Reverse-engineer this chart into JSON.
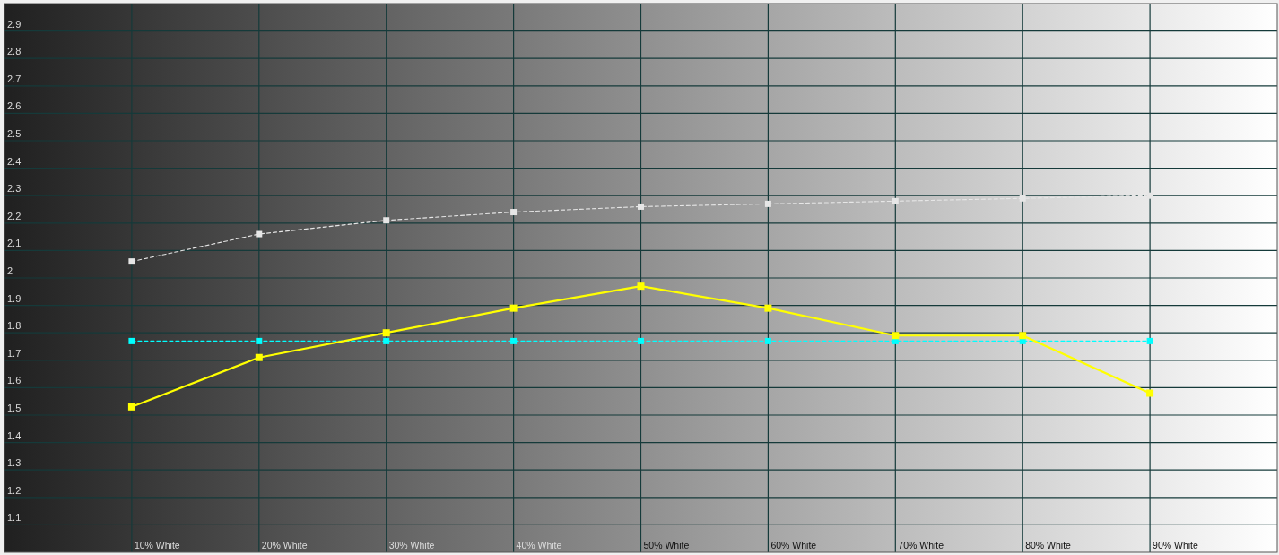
{
  "chart_data": {
    "type": "line",
    "categories": [
      "10% White",
      "20% White",
      "30% White",
      "40% White",
      "50% White",
      "60% White",
      "70% White",
      "80% White",
      "90% White"
    ],
    "series": [
      {
        "color": "#e6e6e6",
        "line_style": "dashed",
        "values": [
          2.06,
          2.16,
          2.21,
          2.24,
          2.26,
          2.27,
          2.28,
          2.29,
          2.3
        ]
      },
      {
        "color": "#00ffff",
        "line_style": "dashed",
        "values": [
          1.77,
          1.77,
          1.77,
          1.77,
          1.77,
          1.77,
          1.77,
          1.77,
          1.77
        ]
      },
      {
        "color": "#ffff00",
        "line_style": "solid",
        "values": [
          1.53,
          1.71,
          1.8,
          1.89,
          1.97,
          1.89,
          1.79,
          1.79,
          1.58
        ]
      }
    ],
    "ylim": [
      1,
      3
    ],
    "yticks": [
      1.1,
      1.2,
      1.3,
      1.4,
      1.5,
      1.6,
      1.7,
      1.8,
      1.9,
      2,
      2.1,
      2.2,
      2.3,
      2.4,
      2.5,
      2.6,
      2.7,
      2.8,
      2.9
    ],
    "grid": true,
    "marker": "square"
  }
}
